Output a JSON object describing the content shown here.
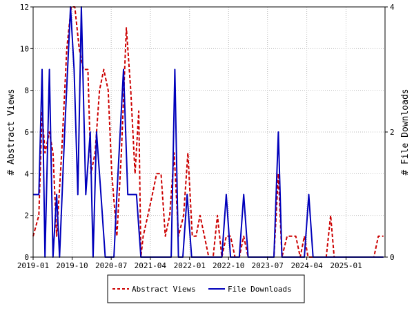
{
  "chart_data": {
    "type": "line",
    "x_tick_labels": [
      "2019-01",
      "2019-10",
      "2020-07",
      "2021-04",
      "2022-01",
      "2022-10",
      "2023-07",
      "2024-04",
      "2025-01"
    ],
    "x_tick_dates": [
      "2019-01-01",
      "2019-10-01",
      "2020-07-01",
      "2021-04-01",
      "2022-01-01",
      "2022-10-01",
      "2023-07-01",
      "2024-04-01",
      "2025-01-01"
    ],
    "x_range": [
      "2019-01-01",
      "2025-10-01"
    ],
    "y_left": {
      "label": "# Abstract Views",
      "lim": [
        0,
        12
      ],
      "ticks": [
        0,
        2,
        4,
        6,
        8,
        10,
        12
      ]
    },
    "y_right": {
      "label": "# File Downloads",
      "lim": [
        0,
        4
      ],
      "ticks": [
        0,
        2,
        4
      ]
    },
    "grid": true,
    "legend_placement": "bottom-center",
    "series": [
      {
        "name": "Abstract Views",
        "axis": "left",
        "color": "#cc0000",
        "style": "dashed",
        "points": [
          [
            "2019-01-01",
            1
          ],
          [
            "2019-02-10",
            2
          ],
          [
            "2019-03-05",
            7
          ],
          [
            "2019-03-25",
            5
          ],
          [
            "2019-04-25",
            6
          ],
          [
            "2019-05-20",
            5
          ],
          [
            "2019-06-15",
            1
          ],
          [
            "2019-07-20",
            5
          ],
          [
            "2019-08-25",
            10
          ],
          [
            "2019-09-25",
            12
          ],
          [
            "2019-10-20",
            12
          ],
          [
            "2019-11-20",
            10
          ],
          [
            "2019-12-20",
            9
          ],
          [
            "2020-01-20",
            9
          ],
          [
            "2020-02-10",
            4
          ],
          [
            "2020-03-10",
            5
          ],
          [
            "2020-04-10",
            8
          ],
          [
            "2020-05-10",
            9
          ],
          [
            "2020-06-10",
            8
          ],
          [
            "2020-07-05",
            4
          ],
          [
            "2020-08-10",
            1
          ],
          [
            "2020-09-10",
            5
          ],
          [
            "2020-10-15",
            11
          ],
          [
            "2020-11-15",
            8
          ],
          [
            "2020-12-15",
            4
          ],
          [
            "2021-01-10",
            7
          ],
          [
            "2021-01-25",
            0
          ],
          [
            "2021-02-10",
            1
          ],
          [
            "2021-03-15",
            2
          ],
          [
            "2021-04-15",
            3
          ],
          [
            "2021-05-15",
            4
          ],
          [
            "2021-06-15",
            4
          ],
          [
            "2021-07-15",
            1
          ],
          [
            "2021-08-15",
            2
          ],
          [
            "2021-09-15",
            5
          ],
          [
            "2021-10-15",
            1
          ],
          [
            "2021-11-20",
            2
          ],
          [
            "2021-12-20",
            5
          ],
          [
            "2022-01-20",
            1
          ],
          [
            "2022-02-15",
            1
          ],
          [
            "2022-03-15",
            2
          ],
          [
            "2022-04-15",
            1
          ],
          [
            "2022-05-15",
            0
          ],
          [
            "2022-06-15",
            0
          ],
          [
            "2022-07-15",
            2
          ],
          [
            "2022-08-15",
            0
          ],
          [
            "2022-09-15",
            1
          ],
          [
            "2022-10-15",
            1
          ],
          [
            "2022-11-15",
            0
          ],
          [
            "2022-12-15",
            0
          ],
          [
            "2023-01-15",
            1
          ],
          [
            "2023-02-15",
            0
          ],
          [
            "2023-03-15",
            0
          ],
          [
            "2023-04-15",
            0
          ],
          [
            "2023-05-15",
            0
          ],
          [
            "2023-06-15",
            0
          ],
          [
            "2023-07-15",
            0
          ],
          [
            "2023-08-15",
            0
          ],
          [
            "2023-09-15",
            4
          ],
          [
            "2023-10-10",
            0
          ],
          [
            "2023-11-15",
            1
          ],
          [
            "2023-12-15",
            1
          ],
          [
            "2024-01-15",
            1
          ],
          [
            "2024-02-15",
            0
          ],
          [
            "2024-03-15",
            1
          ],
          [
            "2024-04-10",
            0
          ],
          [
            "2024-05-15",
            0
          ],
          [
            "2024-06-15",
            0
          ],
          [
            "2024-07-15",
            0
          ],
          [
            "2024-08-15",
            0
          ],
          [
            "2024-09-15",
            2
          ],
          [
            "2024-10-10",
            0
          ],
          [
            "2024-11-15",
            0
          ],
          [
            "2024-12-15",
            0
          ],
          [
            "2025-01-15",
            0
          ],
          [
            "2025-02-15",
            0
          ],
          [
            "2025-03-15",
            0
          ],
          [
            "2025-04-15",
            0
          ],
          [
            "2025-05-15",
            0
          ],
          [
            "2025-06-15",
            0
          ],
          [
            "2025-07-15",
            0
          ],
          [
            "2025-08-15",
            1
          ],
          [
            "2025-09-20",
            1
          ]
        ]
      },
      {
        "name": "File Downloads",
        "axis": "right",
        "color": "#0000bb",
        "style": "solid",
        "points": [
          [
            "2019-01-01",
            1
          ],
          [
            "2019-02-10",
            1
          ],
          [
            "2019-03-05",
            3
          ],
          [
            "2019-03-25",
            0
          ],
          [
            "2019-04-25",
            3
          ],
          [
            "2019-05-20",
            0
          ],
          [
            "2019-06-15",
            1
          ],
          [
            "2019-07-05",
            0
          ],
          [
            "2019-08-10",
            2
          ],
          [
            "2019-09-20",
            4
          ],
          [
            "2019-10-15",
            3
          ],
          [
            "2019-11-10",
            1
          ],
          [
            "2019-12-05",
            4
          ],
          [
            "2020-01-05",
            1
          ],
          [
            "2020-02-05",
            2
          ],
          [
            "2020-02-25",
            0
          ],
          [
            "2020-03-20",
            2
          ],
          [
            "2020-04-20",
            1
          ],
          [
            "2020-05-20",
            0
          ],
          [
            "2020-06-20",
            0
          ],
          [
            "2020-07-20",
            0
          ],
          [
            "2020-08-10",
            1
          ],
          [
            "2020-09-25",
            3
          ],
          [
            "2020-10-25",
            1
          ],
          [
            "2020-11-25",
            1
          ],
          [
            "2020-12-25",
            1
          ],
          [
            "2021-01-25",
            0
          ],
          [
            "2021-02-25",
            0
          ],
          [
            "2021-03-25",
            0
          ],
          [
            "2021-04-25",
            0
          ],
          [
            "2021-05-25",
            0
          ],
          [
            "2021-06-25",
            0
          ],
          [
            "2021-07-25",
            0
          ],
          [
            "2021-08-25",
            0
          ],
          [
            "2021-09-20",
            3
          ],
          [
            "2021-10-15",
            0
          ],
          [
            "2021-11-15",
            0
          ],
          [
            "2021-12-15",
            1
          ],
          [
            "2022-01-15",
            0
          ],
          [
            "2022-02-15",
            0
          ],
          [
            "2022-03-15",
            0
          ],
          [
            "2022-04-15",
            0
          ],
          [
            "2022-05-15",
            0
          ],
          [
            "2022-06-15",
            0
          ],
          [
            "2022-07-15",
            0
          ],
          [
            "2022-08-15",
            0
          ],
          [
            "2022-09-15",
            1
          ],
          [
            "2022-10-15",
            0
          ],
          [
            "2022-11-15",
            0
          ],
          [
            "2022-12-15",
            0
          ],
          [
            "2023-01-15",
            1
          ],
          [
            "2023-02-15",
            0
          ],
          [
            "2023-03-15",
            0
          ],
          [
            "2023-04-15",
            0
          ],
          [
            "2023-05-15",
            0
          ],
          [
            "2023-06-15",
            0
          ],
          [
            "2023-07-15",
            0
          ],
          [
            "2023-08-15",
            0
          ],
          [
            "2023-09-15",
            2
          ],
          [
            "2023-10-10",
            0
          ],
          [
            "2023-11-15",
            0
          ],
          [
            "2023-12-15",
            0
          ],
          [
            "2024-01-15",
            0
          ],
          [
            "2024-02-15",
            0
          ],
          [
            "2024-03-15",
            0
          ],
          [
            "2024-04-15",
            1
          ],
          [
            "2024-05-15",
            0
          ],
          [
            "2024-06-15",
            0
          ],
          [
            "2024-07-15",
            0
          ],
          [
            "2024-08-15",
            0
          ],
          [
            "2024-09-15",
            0
          ],
          [
            "2024-10-15",
            0
          ],
          [
            "2024-11-15",
            0
          ],
          [
            "2024-12-15",
            0
          ],
          [
            "2025-01-15",
            0
          ],
          [
            "2025-02-15",
            0
          ],
          [
            "2025-03-15",
            0
          ],
          [
            "2025-04-15",
            0
          ],
          [
            "2025-05-15",
            0
          ],
          [
            "2025-06-15",
            0
          ],
          [
            "2025-07-15",
            0
          ],
          [
            "2025-08-15",
            0
          ],
          [
            "2025-09-20",
            0
          ]
        ]
      }
    ]
  }
}
